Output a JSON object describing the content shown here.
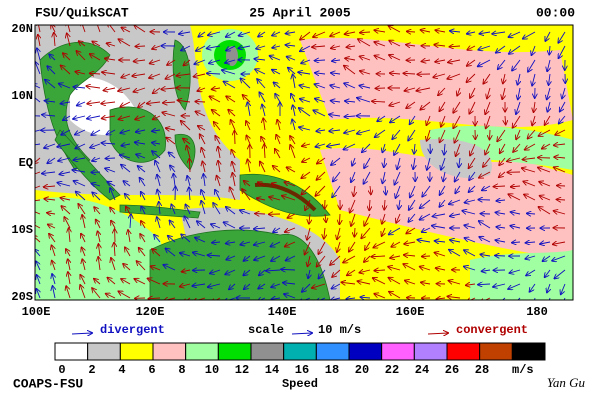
{
  "header": {
    "product": "FSU/QuikSCAT",
    "date": "25 April 2005",
    "time": "00:00"
  },
  "map": {
    "lat_labels": [
      "20N",
      "10N",
      "EQ",
      "10S",
      "20S"
    ],
    "lon_labels": [
      "100E",
      "120E",
      "140E",
      "160E",
      "180"
    ]
  },
  "legend": {
    "divergent": "divergent",
    "scale": "scale",
    "scale_value": "10 m/s",
    "convergent": "convergent"
  },
  "colorbar": {
    "labels": [
      0,
      2,
      4,
      6,
      8,
      10,
      12,
      14,
      16,
      18,
      20,
      22,
      24,
      26,
      28
    ],
    "unit": "m/s",
    "title": "Speed",
    "colors": [
      "#ffffff",
      "#c8c8c8",
      "#ffff00",
      "#ffc0c0",
      "#a0ffa0",
      "#00e000",
      "#909090",
      "#00b0b0",
      "#3090ff",
      "#0000c0",
      "#ff60ff",
      "#b080ff",
      "#ff0000",
      "#c04000",
      "#000000"
    ]
  },
  "footer": {
    "institution": "COAPS-FSU",
    "author": "Yan Gu"
  }
}
